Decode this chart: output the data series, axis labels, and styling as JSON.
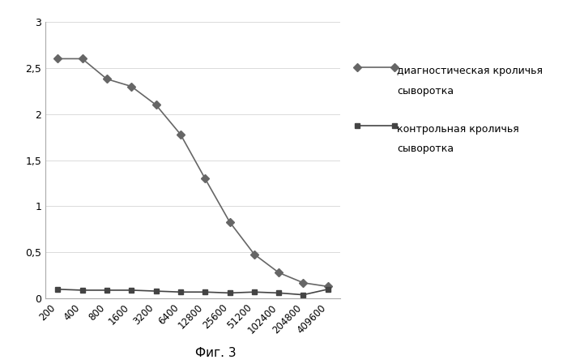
{
  "x_labels": [
    "200",
    "400",
    "800",
    "1600",
    "3200",
    "6400",
    "12800",
    "25600",
    "51200",
    "102400",
    "204800",
    "409600"
  ],
  "x_positions": [
    1,
    2,
    3,
    4,
    5,
    6,
    7,
    8,
    9,
    10,
    11,
    12
  ],
  "series1_values": [
    2.6,
    2.6,
    2.38,
    2.3,
    2.1,
    1.78,
    1.3,
    0.83,
    0.48,
    0.28,
    0.17,
    0.13
  ],
  "series2_values": [
    0.1,
    0.09,
    0.09,
    0.09,
    0.08,
    0.07,
    0.07,
    0.06,
    0.07,
    0.06,
    0.04,
    0.1
  ],
  "series1_label_line1": "диагностическая кроличья",
  "series1_label_line2": "сыворотка",
  "series2_label_line1": "контрольная кроличья",
  "series2_label_line2": "сыворотка",
  "series1_color": "#666666",
  "series2_color": "#444444",
  "marker1": "D",
  "marker2": "s",
  "ylim": [
    0,
    3
  ],
  "yticks": [
    0,
    0.5,
    1,
    1.5,
    2,
    2.5,
    3
  ],
  "ytick_labels": [
    "0",
    "0,5",
    "1",
    "1,5",
    "2",
    "2,5",
    "3"
  ],
  "caption": "Фиг. 3",
  "line_width": 1.2,
  "marker_size": 5
}
